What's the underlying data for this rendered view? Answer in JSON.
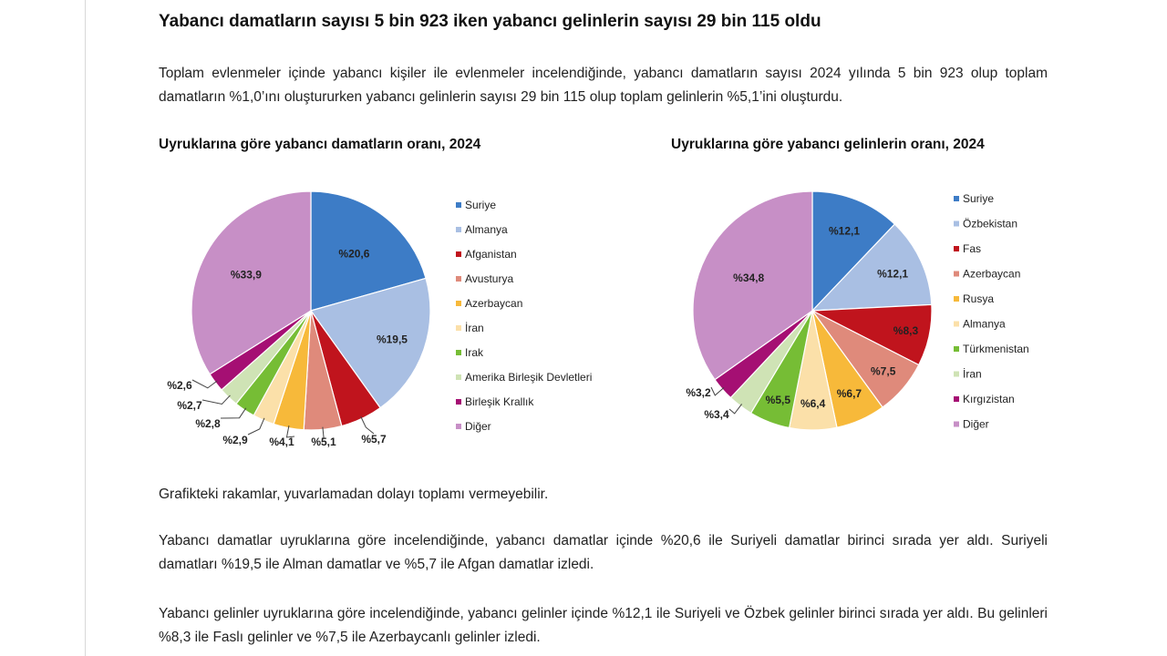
{
  "headline": "Yabancı damatların sayısı 5 bin 923 iken yabancı gelinlerin sayısı 29 bin 115 oldu",
  "intro": "Toplam evlenmeler içinde yabancı kişiler ile evlenmeler incelendiğinde, yabancı damatların sayısı 2024 yılında 5 bin 923 olup toplam damatların %1,0’ını oluştururken yabancı gelinlerin sayısı 29 bin 115 olup toplam gelinlerin %5,1’ini oluşturdu.",
  "note": "Grafikteki rakamlar, yuvarlamadan dolayı toplamı vermeyebilir.",
  "para2": "Yabancı damatlar uyruklarına göre incelendiğinde, yabancı damatlar içinde %20,6 ile Suriyeli damatlar birinci sırada yer aldı. Suriyeli damatları %19,5 ile Alman damatlar ve %5,7 ile Afgan damatlar izledi.",
  "para3": "Yabancı gelinler uyruklarına göre incelendiğinde, yabancı gelinler içinde %12,1 ile Suriyeli ve Özbek gelinler birinci sırada yer aldı. Bu gelinleri %8,3 ile Faslı gelinler ve %7,5 ile Azerbaycanlı gelinler izledi.",
  "chart_data": [
    {
      "type": "pie",
      "title": "Uyruklarına göre yabancı damatların oranı, 2024",
      "legend_position": "right",
      "slices": [
        {
          "label": "Suriye",
          "value": 20.6,
          "text": "%20,6",
          "color": "#3d7cc6"
        },
        {
          "label": "Almanya",
          "value": 19.5,
          "text": "%19,5",
          "color": "#a9bfe3"
        },
        {
          "label": "Afganistan",
          "value": 5.7,
          "text": "%5,7",
          "color": "#c0141d"
        },
        {
          "label": "Avusturya",
          "value": 5.1,
          "text": "%5,1",
          "color": "#df8a7b"
        },
        {
          "label": "Azerbaycan",
          "value": 4.1,
          "text": "%4,1",
          "color": "#f7b93a"
        },
        {
          "label": "İran",
          "value": 2.9,
          "text": "%2,9",
          "color": "#fbe0a9"
        },
        {
          "label": "Irak",
          "value": 2.8,
          "text": "%2,8",
          "color": "#76bd35"
        },
        {
          "label": "Amerika Birleşik Devletleri",
          "value": 2.7,
          "text": "%2,7",
          "color": "#cfe3b5"
        },
        {
          "label": "Birleşik Krallık",
          "value": 2.6,
          "text": "%2,6",
          "color": "#a50f73"
        },
        {
          "label": "Diğer",
          "value": 33.9,
          "text": "%33,9",
          "color": "#c78fc6"
        }
      ]
    },
    {
      "type": "pie",
      "title": "Uyruklarına göre yabancı gelinlerin oranı, 2024",
      "legend_position": "right",
      "slices": [
        {
          "label": "Suriye",
          "value": 12.1,
          "text": "%12,1",
          "color": "#3d7cc6"
        },
        {
          "label": "Özbekistan",
          "value": 12.1,
          "text": "%12,1",
          "color": "#a9bfe3"
        },
        {
          "label": "Fas",
          "value": 8.3,
          "text": "%8,3",
          "color": "#c0141d"
        },
        {
          "label": "Azerbaycan",
          "value": 7.5,
          "text": "%7,5",
          "color": "#df8a7b"
        },
        {
          "label": "Rusya",
          "value": 6.7,
          "text": "%6,7",
          "color": "#f7b93a"
        },
        {
          "label": "Almanya",
          "value": 6.4,
          "text": "%6,4",
          "color": "#fbe0a9"
        },
        {
          "label": "Türkmenistan",
          "value": 5.5,
          "text": "%5,5",
          "color": "#76bd35"
        },
        {
          "label": "İran",
          "value": 3.4,
          "text": "%3,4",
          "color": "#cfe3b5"
        },
        {
          "label": "Kırgızistan",
          "value": 3.2,
          "text": "%3,2",
          "color": "#a50f73"
        },
        {
          "label": "Diğer",
          "value": 34.8,
          "text": "%34,8",
          "color": "#c78fc6"
        }
      ]
    }
  ]
}
